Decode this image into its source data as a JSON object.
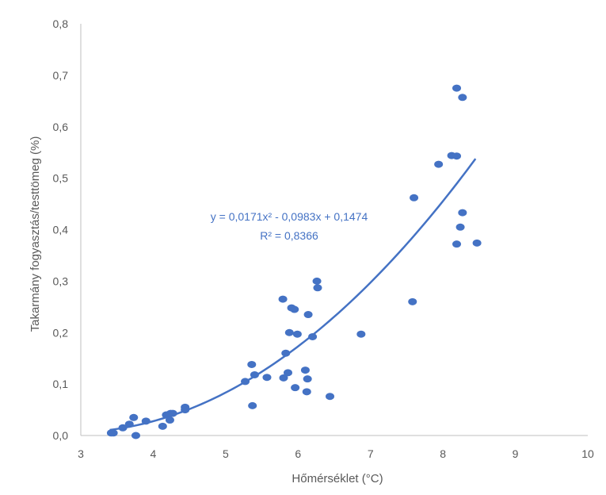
{
  "chart_data": {
    "type": "scatter",
    "xlabel": "Hőmérséklet (°C)",
    "ylabel": "Takarmány fogyasztás/testtömeg (%)",
    "xlim": [
      3,
      10
    ],
    "ylim": [
      0,
      0.8
    ],
    "x_ticks": [
      "3",
      "4",
      "5",
      "6",
      "7",
      "8",
      "9",
      "10"
    ],
    "y_ticks": [
      "0,0",
      "0,1",
      "0,2",
      "0,3",
      "0,4",
      "0,5",
      "0,6",
      "0,7",
      "0,8"
    ],
    "grid": false,
    "point_color": "#4472c4",
    "trendline": {
      "type": "polynomial",
      "order": 2,
      "coefficients": [
        0.0171,
        -0.0983,
        0.1474
      ],
      "x_range": [
        3.4,
        8.45
      ],
      "color": "#4472c4",
      "equation_label": "y = 0,0171x² - 0,0983x + 0,1474",
      "r2_label": "R² = 0,8366"
    },
    "points": [
      {
        "x": 3.42,
        "y": 0.005
      },
      {
        "x": 3.45,
        "y": 0.005
      },
      {
        "x": 3.58,
        "y": 0.015
      },
      {
        "x": 3.67,
        "y": 0.022
      },
      {
        "x": 3.73,
        "y": 0.035
      },
      {
        "x": 3.76,
        "y": 0.0
      },
      {
        "x": 3.9,
        "y": 0.028
      },
      {
        "x": 4.13,
        "y": 0.018
      },
      {
        "x": 4.18,
        "y": 0.04
      },
      {
        "x": 4.23,
        "y": 0.03
      },
      {
        "x": 4.24,
        "y": 0.043
      },
      {
        "x": 4.27,
        "y": 0.043
      },
      {
        "x": 4.44,
        "y": 0.055
      },
      {
        "x": 4.44,
        "y": 0.05
      },
      {
        "x": 5.27,
        "y": 0.105
      },
      {
        "x": 5.36,
        "y": 0.138
      },
      {
        "x": 5.37,
        "y": 0.058
      },
      {
        "x": 5.4,
        "y": 0.118
      },
      {
        "x": 5.57,
        "y": 0.113
      },
      {
        "x": 5.79,
        "y": 0.265
      },
      {
        "x": 5.8,
        "y": 0.112
      },
      {
        "x": 5.83,
        "y": 0.16
      },
      {
        "x": 5.86,
        "y": 0.122
      },
      {
        "x": 5.88,
        "y": 0.2
      },
      {
        "x": 5.91,
        "y": 0.248
      },
      {
        "x": 5.95,
        "y": 0.245
      },
      {
        "x": 5.96,
        "y": 0.093
      },
      {
        "x": 5.99,
        "y": 0.197
      },
      {
        "x": 6.1,
        "y": 0.127
      },
      {
        "x": 6.13,
        "y": 0.11
      },
      {
        "x": 6.12,
        "y": 0.085
      },
      {
        "x": 6.14,
        "y": 0.235
      },
      {
        "x": 6.2,
        "y": 0.192
      },
      {
        "x": 6.26,
        "y": 0.3
      },
      {
        "x": 6.27,
        "y": 0.287
      },
      {
        "x": 6.44,
        "y": 0.076
      },
      {
        "x": 6.87,
        "y": 0.197
      },
      {
        "x": 7.58,
        "y": 0.26
      },
      {
        "x": 7.6,
        "y": 0.462
      },
      {
        "x": 7.94,
        "y": 0.527
      },
      {
        "x": 8.12,
        "y": 0.544
      },
      {
        "x": 8.19,
        "y": 0.543
      },
      {
        "x": 8.19,
        "y": 0.372
      },
      {
        "x": 8.19,
        "y": 0.675
      },
      {
        "x": 8.24,
        "y": 0.405
      },
      {
        "x": 8.27,
        "y": 0.657
      },
      {
        "x": 8.27,
        "y": 0.433
      },
      {
        "x": 8.47,
        "y": 0.374
      }
    ]
  }
}
